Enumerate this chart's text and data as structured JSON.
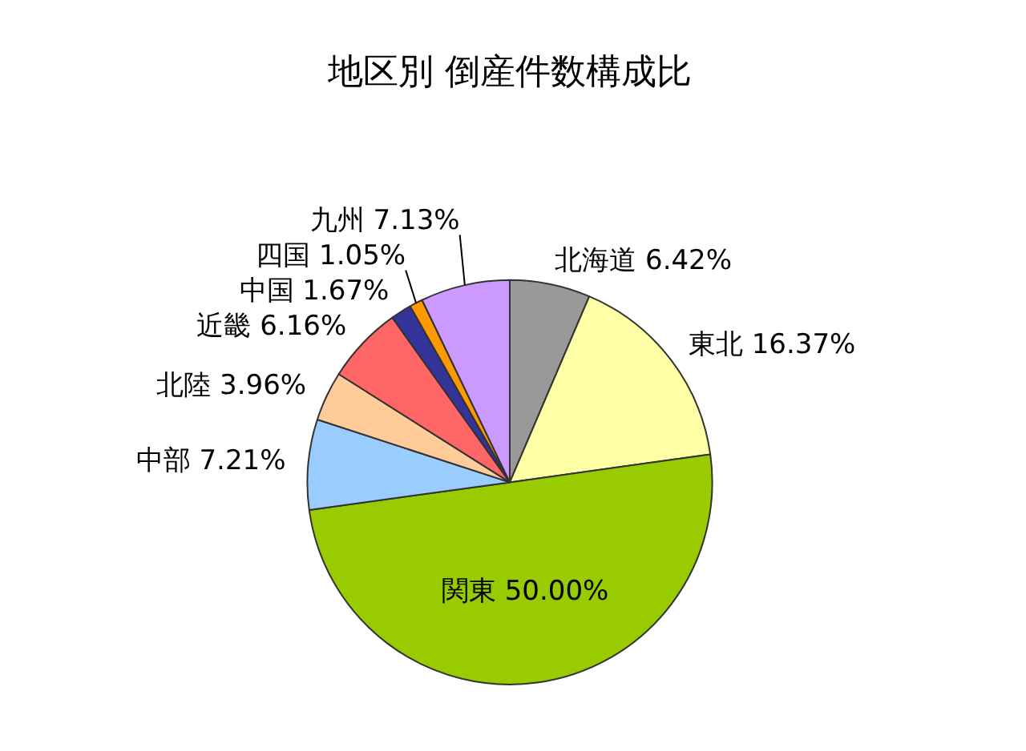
{
  "chart_data": {
    "type": "pie",
    "title": "地区別 倒産件数構成比",
    "categories": [
      "北海道",
      "東北",
      "関東",
      "中部",
      "北陸",
      "近畿",
      "中国",
      "四国",
      "九州"
    ],
    "values": [
      6.42,
      16.37,
      50.0,
      7.21,
      3.96,
      6.16,
      1.67,
      1.05,
      7.13
    ],
    "value_labels": [
      "6.42%",
      "16.37%",
      "50.00%",
      "7.21%",
      "3.96%",
      "6.16%",
      "1.67%",
      "1.05%",
      "7.13%"
    ],
    "colors": [
      "#999999",
      "#ffffa6",
      "#99cc00",
      "#99ccff",
      "#ffcc99",
      "#ff6666",
      "#333399",
      "#ff9900",
      "#cc99ff"
    ],
    "legend": false
  }
}
